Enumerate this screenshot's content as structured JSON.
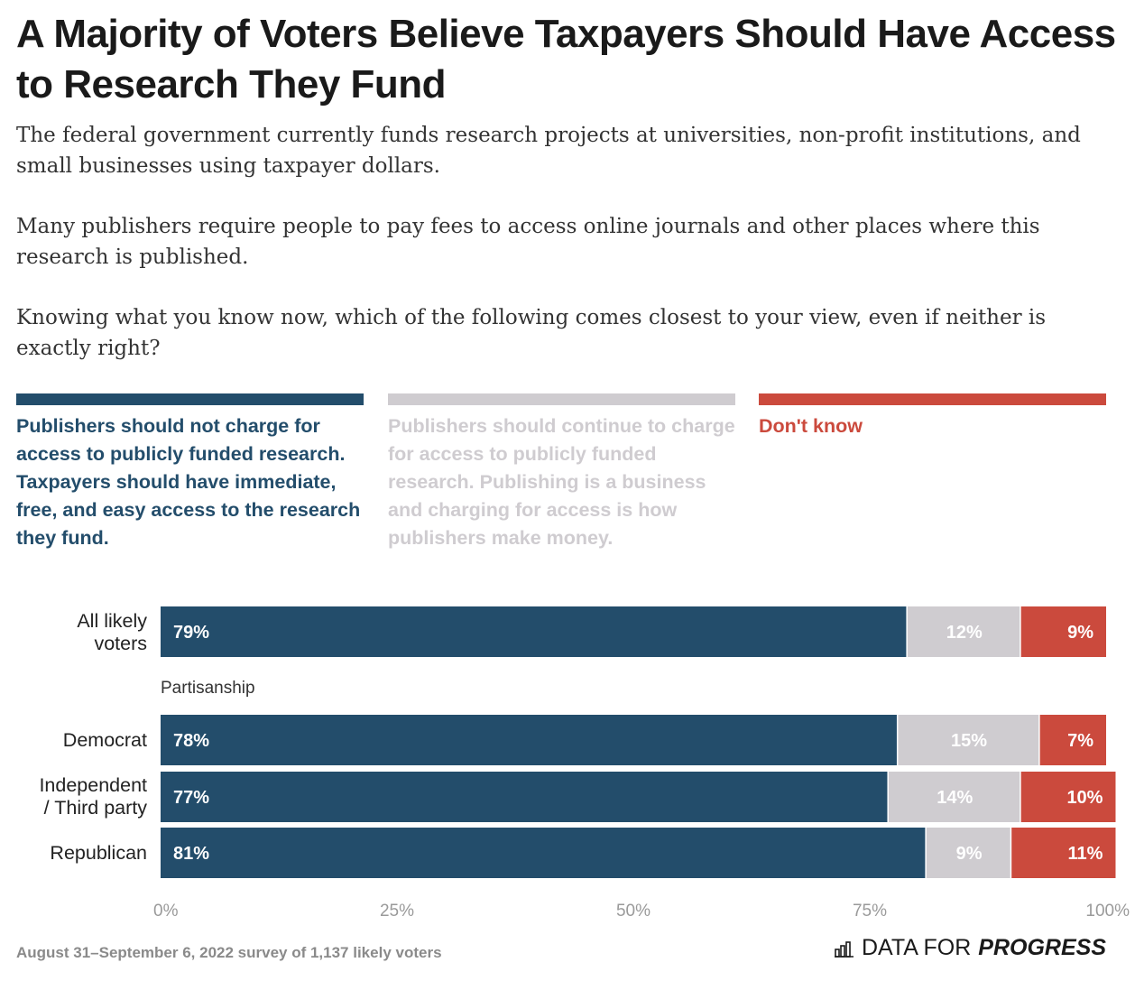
{
  "title": "A Majority of Voters Believe Taxpayers Should Have Access to Research They Fund",
  "intro": {
    "p1": "The federal government currently funds research projects at universities, non-profit institutions, and small businesses using taxpayer dollars.",
    "p2": "Many publishers require people to pay fees to access online journals and other places where this research is published.",
    "p3": "Knowing what you know now, which of the following comes closest to your view, even if neither is exactly right?"
  },
  "colors": {
    "free_access": "#234d6b",
    "continue_charge": "#cfccd0",
    "dont_know": "#cb4a3d"
  },
  "legend": [
    "Publishers should not charge for access to publicly funded research. Taxpayers should have immediate, free, and easy access to the research they fund.",
    "Publishers should continue to charge for access to publicly funded research. Publishing is a business and charging for access is how publishers make money.",
    "Don't know"
  ],
  "chart_data": {
    "type": "bar",
    "orientation": "horizontal",
    "stacked": true,
    "categories": [
      "All likely voters",
      "Democrat",
      "Independent / Third party",
      "Republican"
    ],
    "category_labels": [
      [
        "All likely",
        "voters"
      ],
      [
        "Democrat"
      ],
      [
        "Independent",
        "/ Third party"
      ],
      [
        "Republican"
      ]
    ],
    "group_label": "Partisanship",
    "series": [
      {
        "name": "Publishers should not charge for access to publicly funded research. Taxpayers should have immediate, free, and easy access to the research they fund.",
        "values": [
          79,
          78,
          77,
          81
        ]
      },
      {
        "name": "Publishers should continue to charge for access to publicly funded research. Publishing is a business and charging for access is how publishers make money.",
        "values": [
          12,
          15,
          14,
          9
        ]
      },
      {
        "name": "Don't know",
        "values": [
          9,
          7,
          10,
          11
        ]
      }
    ],
    "xlim": [
      0,
      100
    ],
    "x_ticks": [
      "0%",
      "25%",
      "50%",
      "75%",
      "100%"
    ],
    "value_suffix": "%"
  },
  "footer": {
    "note": "August 31–September 6, 2022 survey of 1,137 likely voters",
    "brand_regular": "DATA FOR",
    "brand_bold": "PROGRESS"
  }
}
